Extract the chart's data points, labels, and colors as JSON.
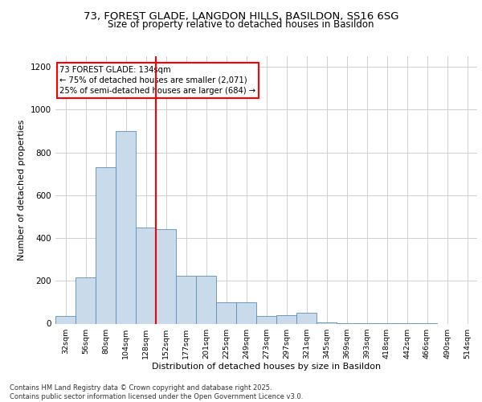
{
  "title_line1": "73, FOREST GLADE, LANGDON HILLS, BASILDON, SS16 6SG",
  "title_line2": "Size of property relative to detached houses in Basildon",
  "xlabel": "Distribution of detached houses by size in Basildon",
  "ylabel": "Number of detached properties",
  "categories": [
    "32sqm",
    "56sqm",
    "80sqm",
    "104sqm",
    "128sqm",
    "152sqm",
    "177sqm",
    "201sqm",
    "225sqm",
    "249sqm",
    "273sqm",
    "297sqm",
    "321sqm",
    "345sqm",
    "369sqm",
    "393sqm",
    "418sqm",
    "442sqm",
    "466sqm",
    "490sqm",
    "514sqm"
  ],
  "values": [
    35,
    215,
    730,
    900,
    450,
    440,
    225,
    225,
    100,
    100,
    35,
    40,
    50,
    5,
    2,
    2,
    1,
    1,
    1,
    0,
    0
  ],
  "bar_color": "#c9daea",
  "bar_edge_color": "#5b8db8",
  "marker_bin_index": 4,
  "marker_color": "red",
  "annotation_line1": "73 FOREST GLADE: 134sqm",
  "annotation_line2": "← 75% of detached houses are smaller (2,071)",
  "annotation_line3": "25% of semi-detached houses are larger (684) →",
  "ylim": [
    0,
    1250
  ],
  "yticks": [
    0,
    200,
    400,
    600,
    800,
    1000,
    1200
  ],
  "footer_line1": "Contains HM Land Registry data © Crown copyright and database right 2025.",
  "footer_line2": "Contains public sector information licensed under the Open Government Licence v3.0.",
  "background_color": "#ffffff",
  "grid_color": "#d0d0d0"
}
